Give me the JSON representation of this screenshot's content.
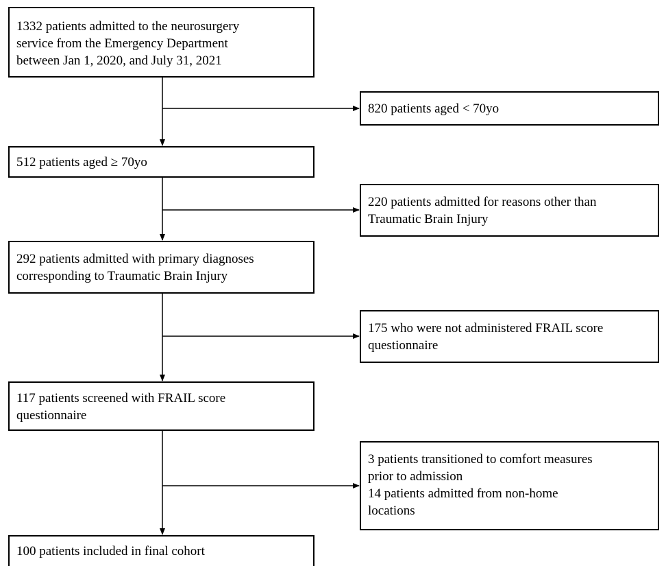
{
  "flowchart": {
    "main_steps": [
      {
        "lines": [
          "1332 patients admitted to the neurosurgery",
          "service from the Emergency Department",
          "between Jan 1, 2020, and July 31, 2021"
        ]
      },
      {
        "lines": [
          "512 patients aged ≥ 70yo"
        ]
      },
      {
        "lines": [
          "292 patients admitted with primary diagnoses",
          "corresponding to Traumatic Brain Injury"
        ]
      },
      {
        "lines": [
          "117 patients screened with FRAIL score",
          "questionnaire"
        ]
      },
      {
        "lines": [
          "100 patients included in final cohort"
        ]
      }
    ],
    "exclusions": [
      {
        "lines": [
          "820 patients aged < 70yo"
        ]
      },
      {
        "lines": [
          "220 patients admitted for reasons other than",
          "Traumatic Brain Injury"
        ]
      },
      {
        "lines": [
          "175 who were not administered FRAIL score",
          "questionnaire"
        ]
      },
      {
        "lines": [
          "3 patients transitioned to comfort measures",
          "prior to admission",
          "14 patients admitted from non-home",
          "locations"
        ]
      }
    ]
  },
  "colors": {
    "stroke": "#000000",
    "background": "#ffffff"
  }
}
